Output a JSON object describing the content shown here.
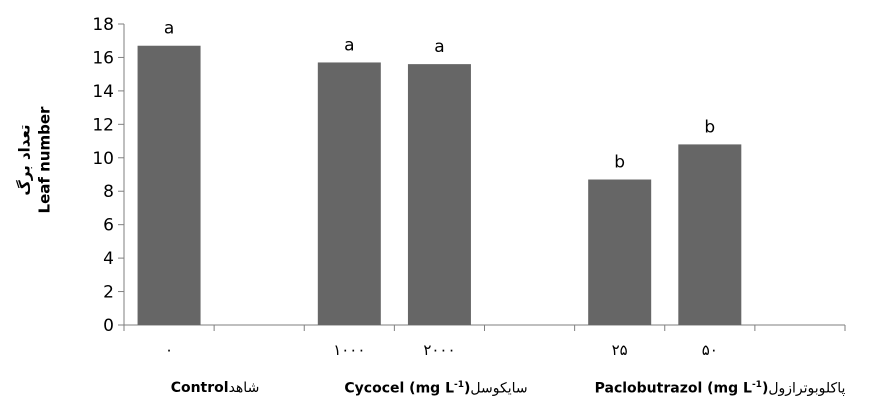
{
  "chart_data": {
    "type": "bar",
    "y_axis_title_fa": "تعداد برگ",
    "y_axis_title_en": "Leaf number",
    "ylim": [
      0,
      18
    ],
    "yticks": [
      "0",
      "2",
      "4",
      "6",
      "8",
      "10",
      "12",
      "14",
      "16",
      "18"
    ],
    "bar_color": "#666666",
    "bars": [
      {
        "category": "۰",
        "value": 16.7,
        "label": "a"
      },
      {
        "category": "۱۰۰۰",
        "value": 15.7,
        "label": "a"
      },
      {
        "category": "۲۰۰۰",
        "value": 15.6,
        "label": "a"
      },
      {
        "category": "۲۵",
        "value": 8.7,
        "label": "b"
      },
      {
        "category": "۵۰",
        "value": 10.8,
        "label": "b"
      }
    ],
    "groups": [
      {
        "en": "Control",
        "fa": "شاهد",
        "unit": ""
      },
      {
        "en": "Cycocel (mg L",
        "fa": "سایکوسل",
        "unit": "-1"
      },
      {
        "en": "Paclobutrazol (mg L",
        "fa": "پاکلوبوترازول",
        "unit": "-1"
      }
    ]
  }
}
